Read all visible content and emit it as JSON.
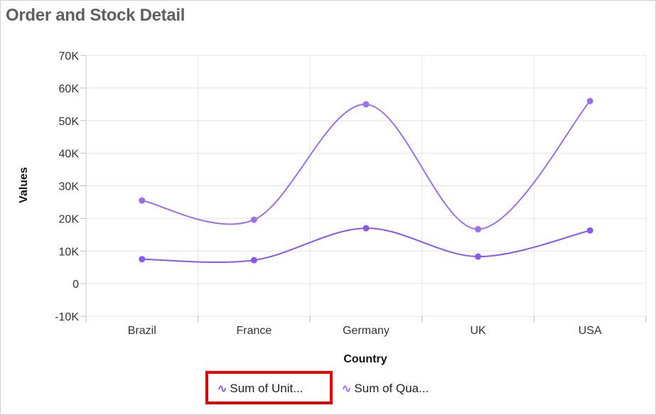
{
  "colors": {
    "series1": "#9a6ff0",
    "series2": "#8b57ec",
    "grid": "#e4e4e4",
    "highlight": "#e50000"
  },
  "chart_data": {
    "type": "line",
    "title": "Order and Stock Detail",
    "xlabel": "Country",
    "ylabel": "Values",
    "categories": [
      "Brazil",
      "France",
      "Germany",
      "UK",
      "USA"
    ],
    "yticks": [
      "70K",
      "60K",
      "50K",
      "40K",
      "30K",
      "20K",
      "10K",
      "0",
      "-10K"
    ],
    "ytick_values": [
      70000,
      60000,
      50000,
      40000,
      30000,
      20000,
      10000,
      0,
      -10000
    ],
    "ylim": [
      -10000,
      70000
    ],
    "grid": true,
    "smooth": true,
    "series": [
      {
        "name": "Sum of UnitsInStock",
        "legend_label": "Sum of Unit...",
        "values": [
          7500,
          7200,
          17000,
          8300,
          16300
        ]
      },
      {
        "name": "Sum of Quantity",
        "legend_label": "Sum of Qua...",
        "values": [
          25500,
          19600,
          55000,
          16700,
          56000
        ]
      }
    ],
    "legend_position": "bottom",
    "highlighted_legend_item": "Sum of Unit..."
  },
  "legend_icon": "∿"
}
